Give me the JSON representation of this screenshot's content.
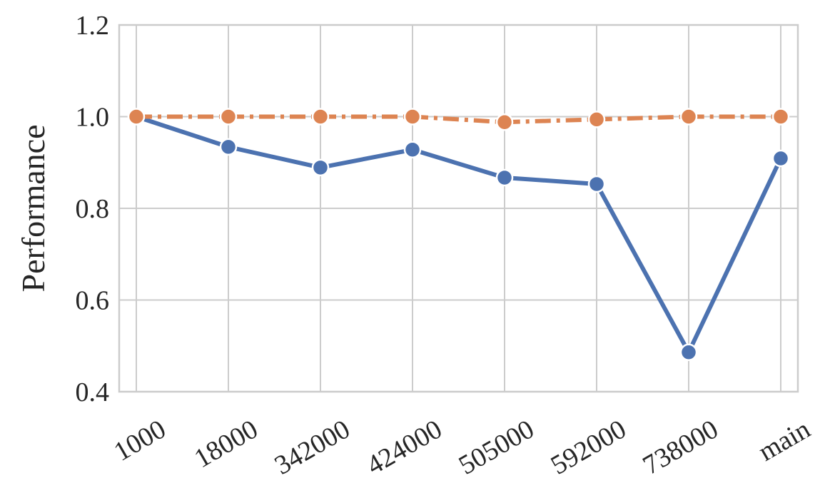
{
  "chart_data": {
    "type": "line",
    "y_label": "Performance",
    "categories": [
      "1000",
      "18000",
      "342000",
      "424000",
      "505000",
      "592000",
      "738000",
      "main"
    ],
    "series": [
      {
        "color": "#4c72b0",
        "linestyle": "solid",
        "values": [
          1.0,
          0.934,
          0.889,
          0.928,
          0.867,
          0.853,
          0.486,
          0.909
        ]
      },
      {
        "color": "#dd8452",
        "linestyle": "dashdot",
        "values": [
          1.0,
          1.0,
          1.0,
          1.0,
          0.988,
          0.994,
          1.0,
          1.0
        ]
      }
    ],
    "ylim": [
      0.4,
      1.2
    ],
    "yticks": [
      0.4,
      0.6,
      0.8,
      1.0,
      1.2
    ],
    "grid": true
  }
}
